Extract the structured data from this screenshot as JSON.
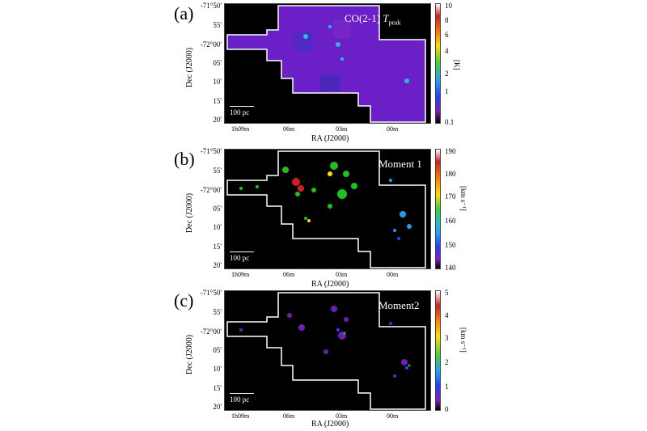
{
  "panels": [
    {
      "label": "(a)",
      "title_main": "CO(2-1) ",
      "title_italic": "T",
      "title_sub": "peak",
      "dec_ticks": [
        "-71°50'",
        "55'",
        "-72°00'",
        "05'",
        "10'",
        "15'",
        "20'"
      ],
      "ra_ticks": [
        "1h09m",
        "06m",
        "03m",
        "00m"
      ],
      "ylabel": "Dec (J2000)",
      "xlabel": "RA (J2000)",
      "scalebar": "100 pc",
      "cbar_ticks": [
        "10",
        "8",
        "6",
        "4",
        "2",
        "1",
        "0.1"
      ],
      "cbar_unit": "[K]"
    },
    {
      "label": "(b)",
      "title_main": "Moment 1",
      "dec_ticks": [
        "-71°50'",
        "55'",
        "-72°00'",
        "05'",
        "10'",
        "15'",
        "20'"
      ],
      "ra_ticks": [
        "1h09m",
        "06m",
        "03m",
        "00m"
      ],
      "ylabel": "Dec (J2000)",
      "xlabel": "RA (J2000)",
      "scalebar": "100 pc",
      "cbar_ticks": [
        "190",
        "180",
        "170",
        "160",
        "150",
        "140"
      ],
      "cbar_unit": "[km s⁻¹]"
    },
    {
      "label": "(c)",
      "title_main": "Moment2",
      "dec_ticks": [
        "-71°50'",
        "55'",
        "-72°00'",
        "05'",
        "10'",
        "15'",
        "20'"
      ],
      "ra_ticks": [
        "1h09m",
        "06m",
        "03m",
        "00m"
      ],
      "ylabel": "Dec (J2000)",
      "xlabel": "RA (J2000)",
      "scalebar": "100 pc",
      "cbar_ticks": [
        "5",
        "4",
        "3",
        "2",
        "1",
        "0"
      ],
      "cbar_unit": "[km s⁻¹]"
    }
  ],
  "colors": {
    "background": "#000000",
    "outline": "#ffffff",
    "peak_fill": "#6a1fc7"
  }
}
